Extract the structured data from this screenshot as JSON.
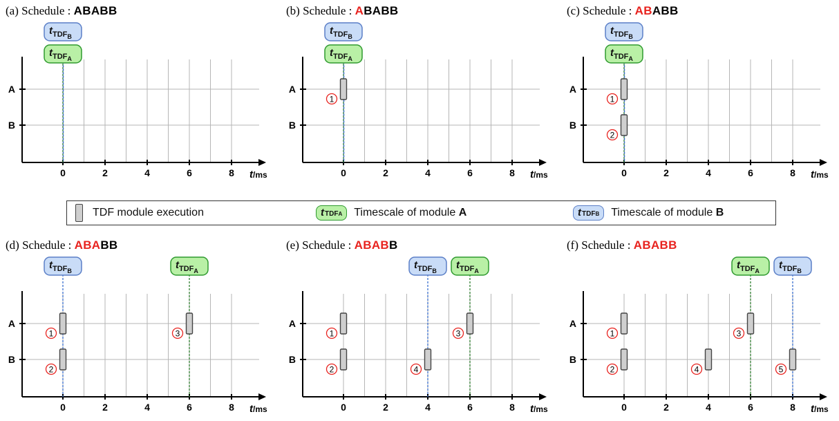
{
  "colors": {
    "highlight": "#e8231f",
    "grid": "#b5b5b5",
    "axis": "#000000",
    "exec_fill": "#cfcfcf",
    "exec_stroke": "#444444",
    "tdf_a_fill": "#b9f0a6",
    "tdf_a_stroke": "#2f9a2f",
    "tdf_a_line": "#2f7f2f",
    "tdf_b_fill": "#c9dcf7",
    "tdf_b_stroke": "#5b7fc7",
    "tdf_b_line": "#3a6fcf",
    "marker": "#e8231f"
  },
  "axis": {
    "x_ticks": [
      "0",
      "2",
      "4",
      "6",
      "8"
    ],
    "x_tick_values": [
      0,
      2,
      4,
      6,
      8
    ],
    "x_label_t": "t",
    "x_label_unit": "/ms",
    "rows": [
      "A",
      "B"
    ]
  },
  "tdf": {
    "t": "t",
    "sub": "TDF",
    "a_sub": "A",
    "b_sub": "B"
  },
  "legend": {
    "exec_label": "TDF module execution",
    "a_label_prefix": "Timescale of module ",
    "a_label_bold": "A",
    "b_label_prefix": "Timescale of module ",
    "b_label_bold": "B"
  },
  "schedule": "ABABB",
  "panels": [
    {
      "title": "(a) Schedule : ",
      "done": 0,
      "tdf_a_time": 0,
      "tdf_b_time": 0,
      "execs": []
    },
    {
      "title": "(b) Schedule : ",
      "done": 1,
      "tdf_a_time": 0,
      "tdf_b_time": 0,
      "execs": [
        {
          "row": "A",
          "time": 0,
          "num": "1"
        }
      ]
    },
    {
      "title": "(c) Schedule : ",
      "done": 2,
      "tdf_a_time": 0,
      "tdf_b_time": 0,
      "execs": [
        {
          "row": "A",
          "time": 0,
          "num": "1"
        },
        {
          "row": "B",
          "time": 0,
          "num": "2"
        }
      ]
    },
    {
      "title": "(d) Schedule : ",
      "done": 3,
      "tdf_a_time": 6,
      "tdf_b_time": 0,
      "execs": [
        {
          "row": "A",
          "time": 0,
          "num": "1"
        },
        {
          "row": "B",
          "time": 0,
          "num": "2"
        },
        {
          "row": "A",
          "time": 6,
          "num": "3"
        }
      ]
    },
    {
      "title": "(e) Schedule : ",
      "done": 4,
      "tdf_a_time": 6,
      "tdf_b_time": 4,
      "execs": [
        {
          "row": "A",
          "time": 0,
          "num": "1"
        },
        {
          "row": "B",
          "time": 0,
          "num": "2"
        },
        {
          "row": "A",
          "time": 6,
          "num": "3"
        },
        {
          "row": "B",
          "time": 4,
          "num": "4"
        }
      ]
    },
    {
      "title": "(f) Schedule : ",
      "done": 5,
      "tdf_a_time": 6,
      "tdf_b_time": 8,
      "execs": [
        {
          "row": "A",
          "time": 0,
          "num": "1"
        },
        {
          "row": "B",
          "time": 0,
          "num": "2"
        },
        {
          "row": "A",
          "time": 6,
          "num": "3"
        },
        {
          "row": "B",
          "time": 4,
          "num": "4"
        },
        {
          "row": "B",
          "time": 8,
          "num": "5"
        }
      ]
    }
  ]
}
